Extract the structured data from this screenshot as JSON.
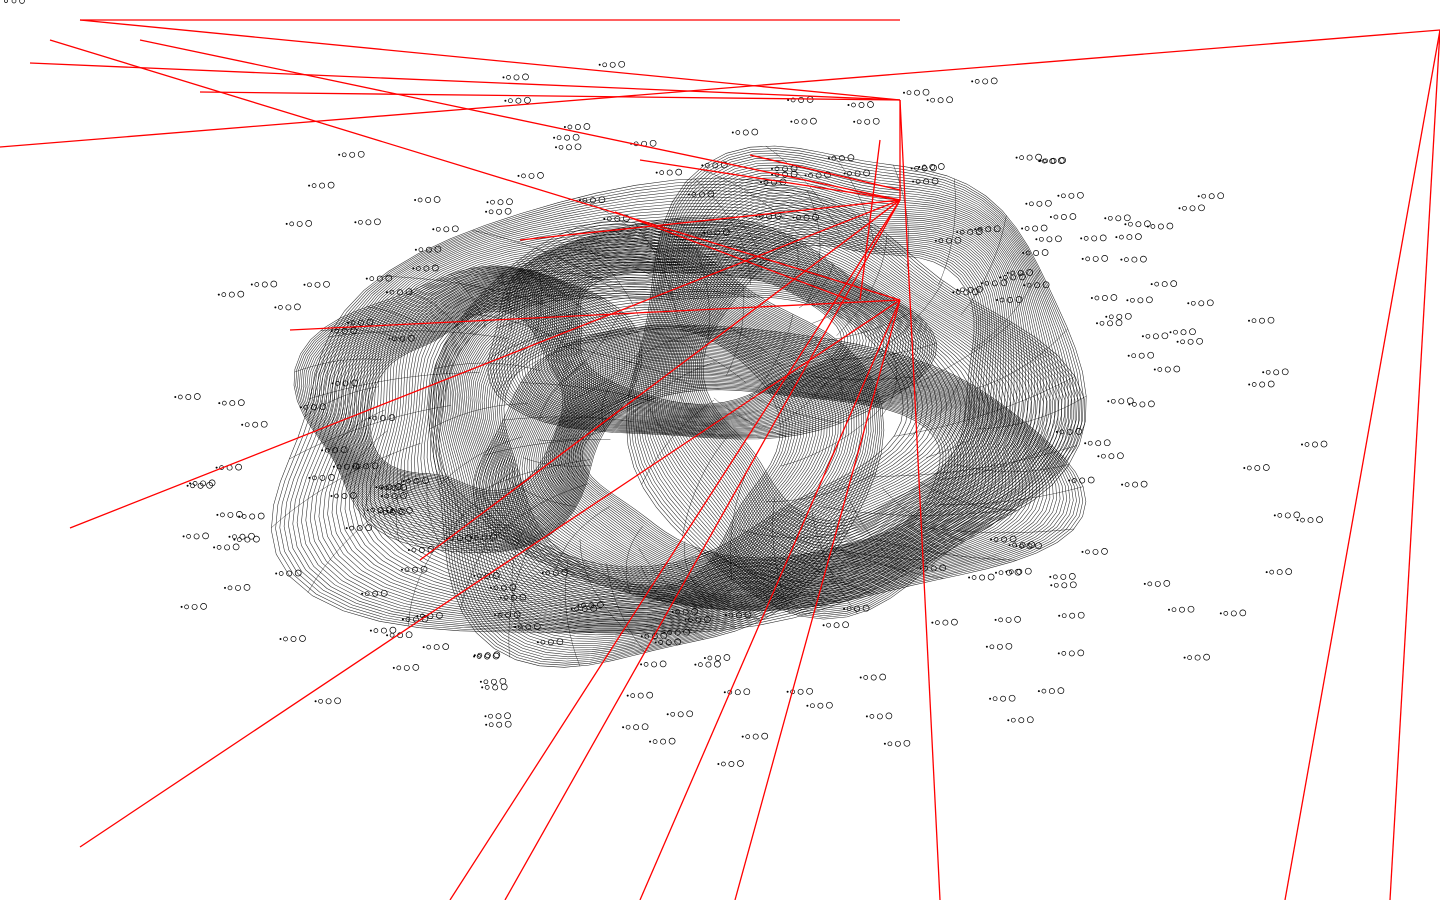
{
  "scene": {
    "background": "#ffffff",
    "mesh_color": "#000000",
    "ray_color": "#ff0000",
    "glyph_color": "#000000",
    "mesh": {
      "ring_counts": [
        44,
        42,
        40,
        38,
        46,
        36
      ]
    },
    "rays": {
      "count": 24
    },
    "glyph_clusters": {
      "count": 210
    }
  }
}
